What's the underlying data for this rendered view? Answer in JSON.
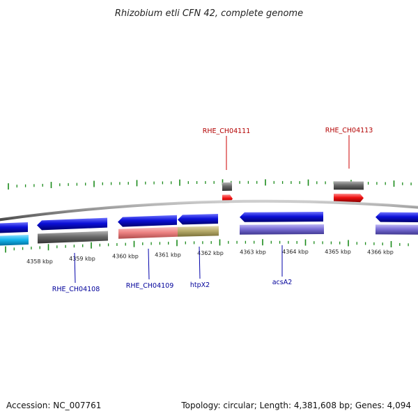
{
  "title": "Rhizobium etli CFN 42, complete genome",
  "footer": {
    "accession": "Accession: NC_007761",
    "stats": "Topology: circular; Length: 4,381,608 bp; Genes: 4,094"
  },
  "colors": {
    "backbone": "#8c8c8c",
    "tick": "#1a8a1a",
    "forward_label": "#b30000",
    "reverse_label": "#00009a",
    "cds_blue": "#0b10d8",
    "cds_red": "#ee1010",
    "gray_track": "#6a6a6a",
    "cyan_track": "#16b6ee",
    "purple_track": "#7a6fd6",
    "salmon_track": "#ee8484",
    "olive_track": "#b8ac6c"
  },
  "axis": {
    "ticks": [
      "4358 kbp",
      "4359 kbp",
      "4360 kbp",
      "4361 kbp",
      "4362 kbp",
      "4363 kbp",
      "4364 kbp",
      "4365 kbp",
      "4366 kbp"
    ]
  },
  "features": {
    "forward": [
      "RHE_CH04111",
      "RHE_CH04113"
    ],
    "reverse": [
      "RHE_CH04108",
      "RHE_CH04109",
      "htpX2",
      "acsA2"
    ]
  }
}
